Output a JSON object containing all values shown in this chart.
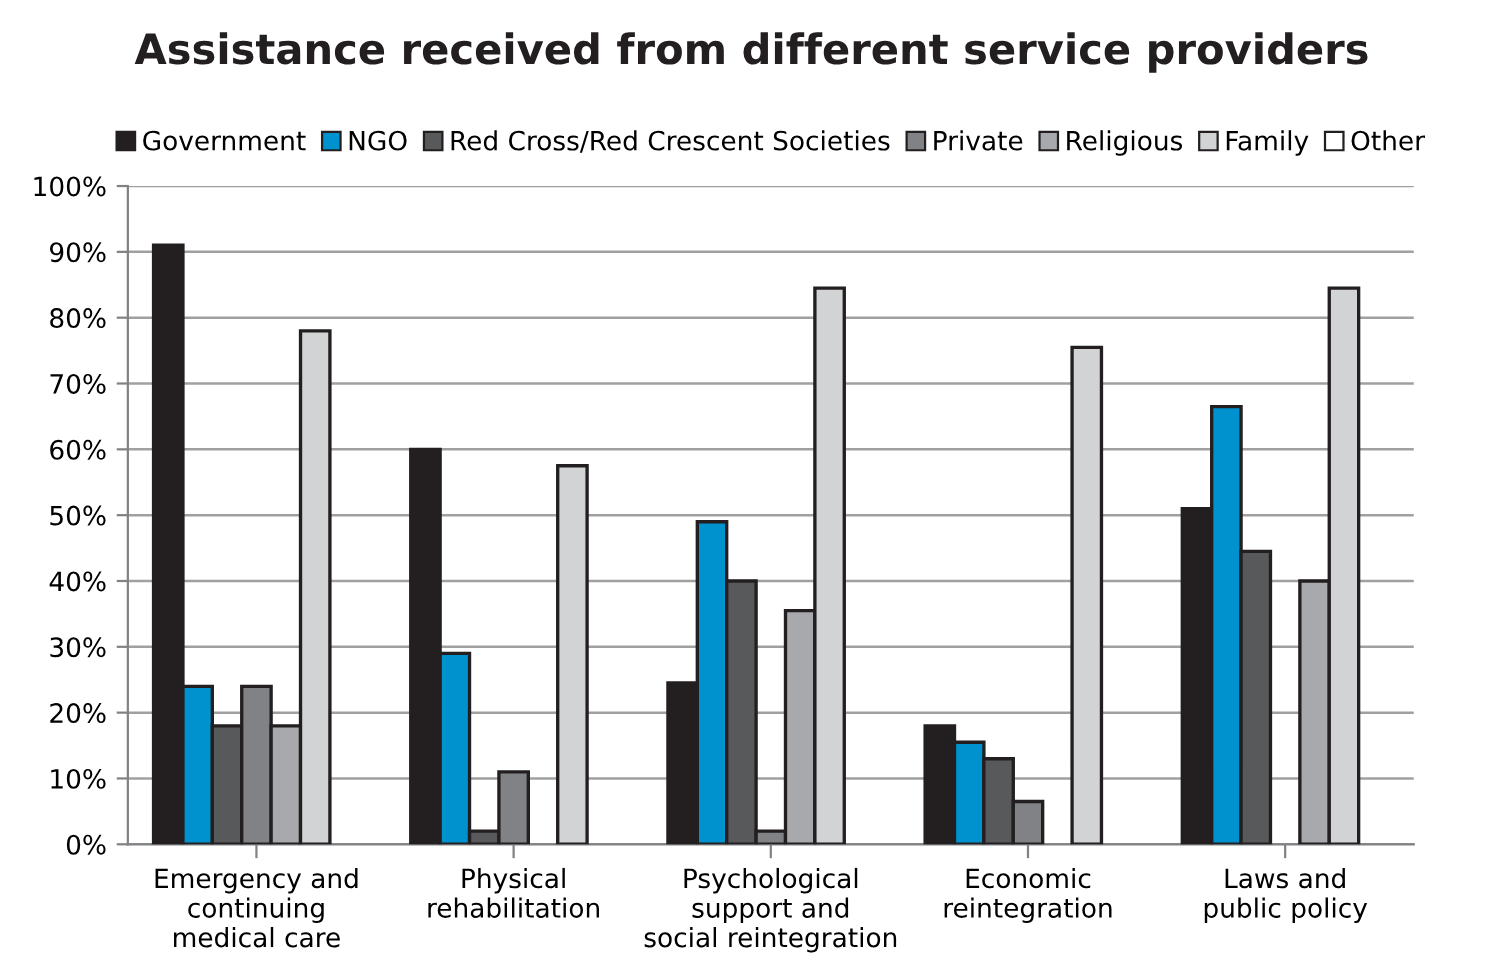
{
  "chart_data": {
    "type": "bar",
    "title": "Assistance received from different service providers",
    "categories": [
      "Emergency and\ncontinuing\nmedical care",
      "Physical\nrehabilitation",
      "Psychological\nsupport and\nsocial reintegration",
      "Economic\nreintegration",
      "Laws and\npublic policy"
    ],
    "series": [
      {
        "name": "Government",
        "color": "#231f20",
        "values": [
          91,
          60,
          24.5,
          18,
          51
        ]
      },
      {
        "name": "NGO",
        "color": "#0092cf",
        "values": [
          24,
          29,
          49,
          15.5,
          66.5
        ]
      },
      {
        "name": "Red Cross/Red Crescent Societies",
        "color": "#58595b",
        "values": [
          18,
          2,
          40,
          13,
          44.5
        ]
      },
      {
        "name": "Private",
        "color": "#808285",
        "values": [
          24,
          11,
          2,
          6.5,
          null
        ]
      },
      {
        "name": "Religious",
        "color": "#a7a9ac",
        "values": [
          18,
          null,
          35.5,
          null,
          40
        ]
      },
      {
        "name": "Family",
        "color": "#d1d3d4",
        "values": [
          78,
          57.5,
          84.5,
          75.5,
          84.5
        ]
      },
      {
        "name": "Other",
        "color": "#ffffff",
        "values": [
          null,
          null,
          null,
          null,
          null
        ]
      }
    ],
    "ylim": [
      0,
      100
    ],
    "yticks": [
      {
        "value": 0,
        "label": "0%"
      },
      {
        "value": 10,
        "label": "10%"
      },
      {
        "value": 20,
        "label": "20%"
      },
      {
        "value": 30,
        "label": "30%"
      },
      {
        "value": 40,
        "label": "40%"
      },
      {
        "value": 50,
        "label": "50%"
      },
      {
        "value": 60,
        "label": "60%"
      },
      {
        "value": 70,
        "label": "70%"
      },
      {
        "value": 80,
        "label": "80%"
      },
      {
        "value": 90,
        "label": "90%"
      },
      {
        "value": 100,
        "label": "100%"
      }
    ],
    "grid": "y",
    "legend": "top"
  }
}
